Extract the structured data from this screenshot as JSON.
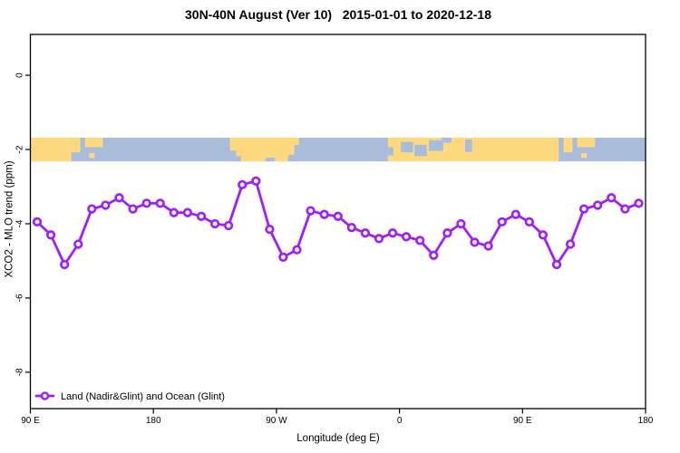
{
  "chart_data": {
    "type": "line",
    "title": "30N-40N August (Ver 10)   2015-01-01 to 2020-12-18",
    "xlabel": "Longitude (deg E)",
    "ylabel": "XCO2 - MLO trend (ppm)",
    "xlim": [
      90,
      540
    ],
    "ylim": [
      -8.98,
      1.1
    ],
    "grid": "off",
    "x_ticks": [
      {
        "x": 90,
        "label": "90 E"
      },
      {
        "x": 180,
        "label": "180"
      },
      {
        "x": 270,
        "label": "90 W"
      },
      {
        "x": 360,
        "label": "0"
      },
      {
        "x": 450,
        "label": "90 E"
      },
      {
        "x": 540,
        "label": "180"
      }
    ],
    "y_ticks": [
      {
        "y": 0,
        "label": "0"
      },
      {
        "y": -2,
        "label": "-2"
      },
      {
        "y": -4,
        "label": "-4"
      },
      {
        "y": -6,
        "label": "-6"
      },
      {
        "y": -8,
        "label": "-8"
      }
    ],
    "legend": {
      "position": "bottom-left"
    },
    "series": [
      {
        "name": "Land (Nadir&Glint) and Ocean (Glint)",
        "color": "#A020F0",
        "marker": "open-circle",
        "x": [
          95,
          105,
          115,
          125,
          135,
          145,
          155,
          165,
          175,
          185,
          195,
          205,
          215,
          225,
          235,
          245,
          255,
          265,
          275,
          285,
          295,
          305,
          315,
          325,
          335,
          345,
          355,
          365,
          375,
          385,
          395,
          405,
          415,
          425,
          435,
          445,
          455,
          465,
          475,
          485,
          495,
          505,
          515,
          525,
          535
        ],
        "values": [
          -3.95,
          -4.3,
          -5.1,
          -4.55,
          -3.6,
          -3.5,
          -3.3,
          -3.6,
          -3.45,
          -3.45,
          -3.7,
          -3.7,
          -3.8,
          -4.0,
          -4.05,
          -2.95,
          -2.85,
          -4.15,
          -4.9,
          -4.7,
          -3.65,
          -3.75,
          -3.8,
          -4.1,
          -4.25,
          -4.4,
          -4.25,
          -4.35,
          -4.45,
          -4.85,
          -4.25,
          -4.0,
          -4.5,
          -4.6,
          -3.95,
          -3.75,
          -3.95,
          -4.3,
          -5.1,
          -4.55,
          -3.6,
          -3.5,
          -3.3,
          -3.6,
          -3.45
        ]
      }
    ],
    "map_band": {
      "y_range": [
        -1.68,
        -2.32
      ],
      "ocean_color": "#A9BDDB",
      "land_color": "#FFD980",
      "land_segments": [
        {
          "from": 90,
          "to": 120
        },
        {
          "from": 120,
          "to": 126.5,
          "b": 0.62
        },
        {
          "from": 130,
          "to": 143,
          "b": 0.4
        },
        {
          "from": 133,
          "to": 137,
          "t": 0.65,
          "b": 0.85
        },
        {
          "from": 236,
          "to": 283
        },
        {
          "from": 283,
          "to": 286.5,
          "b": 0.3
        },
        {
          "from": 351.5,
          "to": 476.5
        },
        {
          "from": 480,
          "to": 486.5,
          "b": 0.62
        },
        {
          "from": 490,
          "to": 503,
          "b": 0.4
        },
        {
          "from": 493,
          "to": 497,
          "t": 0.65,
          "b": 0.85
        }
      ],
      "ocean_patches": [
        {
          "from": 236,
          "to": 240.5,
          "t": 0.55
        },
        {
          "from": 240.5,
          "to": 244,
          "t": 0.78
        },
        {
          "from": 262,
          "to": 269,
          "t": 0.85
        },
        {
          "from": 278.5,
          "to": 283,
          "t": 0.72
        },
        {
          "from": 351.5,
          "to": 355.5,
          "t": 0.4,
          "b": 0.75
        },
        {
          "from": 361,
          "to": 370,
          "t": 0.18,
          "b": 0.62
        },
        {
          "from": 371,
          "to": 380,
          "t": 0.3,
          "b": 0.78
        },
        {
          "from": 381.5,
          "to": 392,
          "t": 0.1,
          "b": 0.56
        },
        {
          "from": 391,
          "to": 398,
          "t": 0.0,
          "b": 0.22
        },
        {
          "from": 408,
          "to": 413,
          "t": 0.08,
          "b": 0.6
        }
      ]
    }
  }
}
